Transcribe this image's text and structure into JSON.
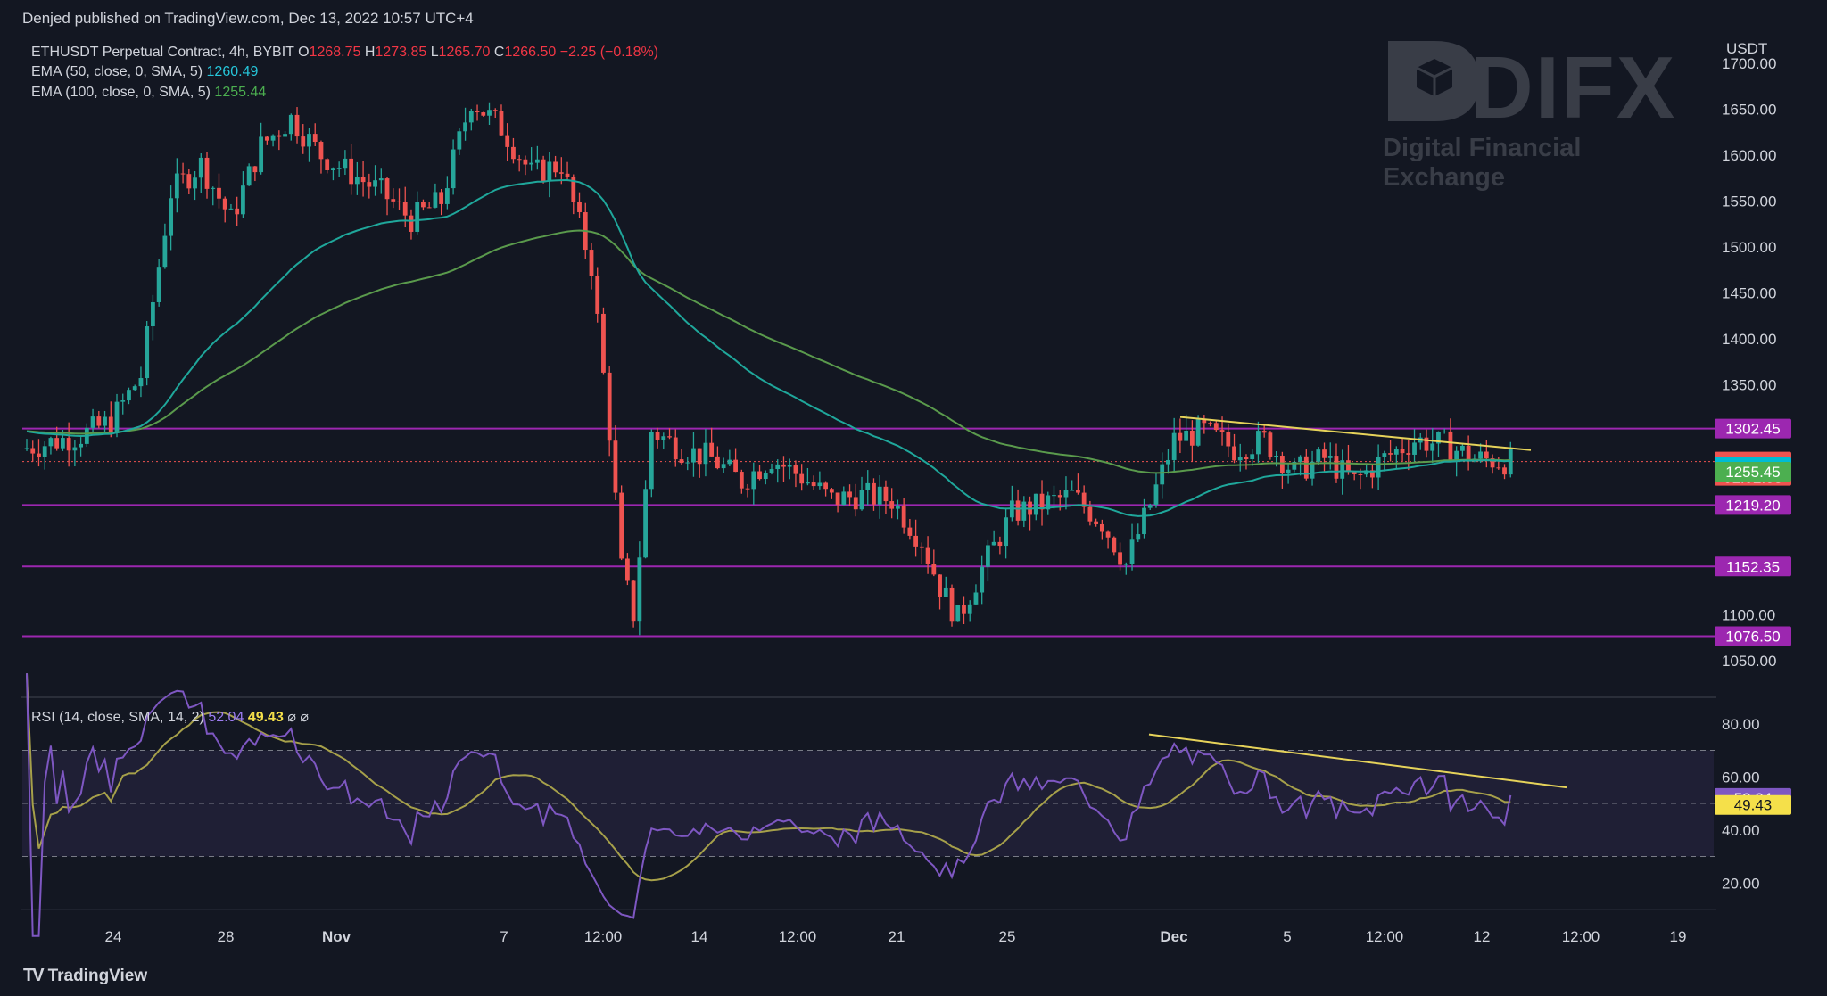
{
  "header": {
    "publish_info": "Denjed published on TradingView.com, Dec 13, 2022 10:57 UTC+4"
  },
  "legend": {
    "symbol": "ETHUSDT Perpetual Contract, 4h, BYBIT",
    "o_label": "O",
    "o_val": "1268.75",
    "h_label": "H",
    "h_val": "1273.85",
    "l_label": "L",
    "l_val": "1265.70",
    "c_label": "C",
    "c_val": "1266.50",
    "change": "−2.25 (−0.18%)",
    "ema50_label": "EMA (50, close, 0, SMA, 5)",
    "ema50_val": "1260.49",
    "ema100_label": "EMA (100, close, 0, SMA, 5)",
    "ema100_val": "1255.44",
    "rsi_label": "RSI (14, close, SMA, 14, 2)",
    "rsi_val": "52.04",
    "rsi_ma_val": "49.43",
    "rsi_extra": "⌀  ⌀"
  },
  "watermark": {
    "brand": "DIFX",
    "tagline": "Digital Financial Exchange"
  },
  "footer": {
    "logo_text": "TradingView"
  },
  "colors": {
    "bg": "#131722",
    "up": "#26a69a",
    "down": "#ef5350",
    "ema50": "#1fa79b",
    "ema100": "#5a9a4c",
    "level": "#9c27b0",
    "trend": "#e6d35a",
    "rsi": "#7e57c2",
    "rsi_ma": "#a6a04a"
  },
  "chart_data": [
    {
      "type": "candlestick",
      "title": "ETHUSDT Perpetual Contract, 4h, BYBIT",
      "currency": "USDT",
      "ylim": [
        1010,
        1730
      ],
      "y_ticks": [
        "1700.00",
        "1650.00",
        "1600.00",
        "1550.00",
        "1500.00",
        "1450.00",
        "1400.00",
        "1350.00",
        "1100.00",
        "1050.00"
      ],
      "x_ticks": [
        "24",
        "28",
        "Nov",
        "7",
        "12:00",
        "14",
        "12:00",
        "21",
        "25",
        "Dec",
        "5",
        "12:00",
        "12",
        "12:00",
        "19"
      ],
      "price_path": [
        [
          0,
          1280
        ],
        [
          10,
          1295
        ],
        [
          15,
          1310
        ],
        [
          20,
          1360
        ],
        [
          25,
          1560
        ],
        [
          30,
          1590
        ],
        [
          35,
          1530
        ],
        [
          40,
          1610
        ],
        [
          45,
          1640
        ],
        [
          50,
          1600
        ],
        [
          55,
          1580
        ],
        [
          60,
          1560
        ],
        [
          65,
          1530
        ],
        [
          70,
          1550
        ],
        [
          75,
          1660
        ],
        [
          80,
          1630
        ],
        [
          85,
          1580
        ],
        [
          90,
          1590
        ],
        [
          95,
          1480
        ],
        [
          98,
          1300
        ],
        [
          100,
          1150
        ],
        [
          102,
          1100
        ],
        [
          105,
          1300
        ],
        [
          110,
          1280
        ],
        [
          115,
          1270
        ],
        [
          120,
          1245
        ],
        [
          125,
          1270
        ],
        [
          130,
          1250
        ],
        [
          135,
          1225
        ],
        [
          140,
          1230
        ],
        [
          145,
          1225
        ],
        [
          150,
          1180
        ],
        [
          153,
          1130
        ],
        [
          156,
          1095
        ],
        [
          160,
          1150
        ],
        [
          165,
          1210
        ],
        [
          170,
          1220
        ],
        [
          175,
          1230
        ],
        [
          180,
          1200
        ],
        [
          184,
          1155
        ],
        [
          188,
          1220
        ],
        [
          192,
          1290
        ],
        [
          197,
          1300
        ],
        [
          202,
          1280
        ],
        [
          207,
          1290
        ],
        [
          212,
          1255
        ],
        [
          217,
          1270
        ],
        [
          222,
          1245
        ],
        [
          227,
          1270
        ],
        [
          232,
          1290
        ],
        [
          237,
          1285
        ],
        [
          242,
          1270
        ],
        [
          248,
          1266
        ]
      ],
      "ema50_last": 1260.49,
      "ema100_last": 1255.44,
      "last_price": 1266.5,
      "last_change": "−2.25 (−0.18%)",
      "countdown": "01:02:53",
      "horizontal_levels": [
        1302.45,
        1219.2,
        1152.35,
        1076.5
      ],
      "trendline": {
        "from": [
          1323,
          1315
        ],
        "to": [
          1716,
          1279
        ]
      },
      "price_labels": [
        {
          "value": 1302.45,
          "text": "1302.45",
          "color": "#9c27b0"
        },
        {
          "value": 1266.5,
          "text": "1266.50",
          "color": "#ef5350"
        },
        {
          "value": 1260.5,
          "text": "1260.50",
          "color": "#00bcd4"
        },
        {
          "value": 1255.45,
          "text": "1255.45",
          "color": "#4caf50"
        },
        {
          "value": 1219.2,
          "text": "1219.20",
          "color": "#9c27b0"
        },
        {
          "value": 1152.35,
          "text": "1152.35",
          "color": "#9c27b0"
        },
        {
          "value": 1076.5,
          "text": "1076.50",
          "color": "#9c27b0"
        }
      ]
    },
    {
      "type": "line",
      "title": "RSI (14, close, SMA, 14, 2)",
      "ylim": [
        10,
        90
      ],
      "y_ticks": [
        "80.00",
        "60.00",
        "40.00",
        "20.00"
      ],
      "band": [
        30,
        70
      ],
      "midline": 50,
      "rsi_last": 52.04,
      "rsi_ma_last": 49.43,
      "trendline": {
        "from": [
          1288,
          76
        ],
        "to": [
          1756,
          56
        ]
      },
      "price_labels": [
        {
          "value": 52.04,
          "text": "52.04",
          "color": "#7e57c2"
        },
        {
          "value": 49.43,
          "text": "49.43",
          "color": "#f5e04a"
        }
      ]
    }
  ]
}
